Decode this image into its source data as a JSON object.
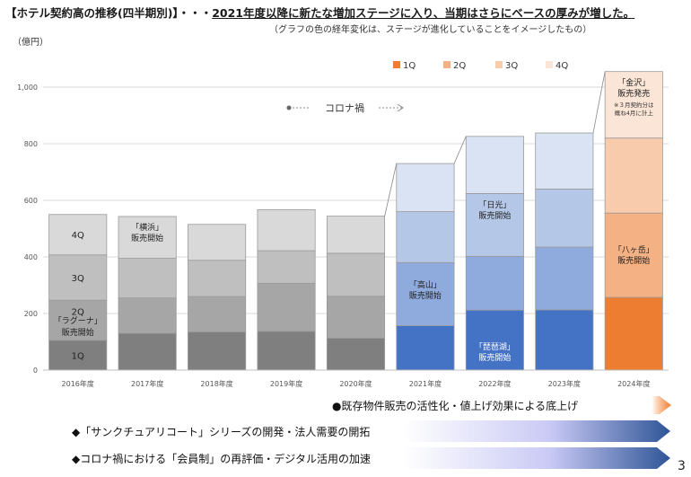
{
  "header": {
    "title_prefix": "【ホテル契約高の推移(四半期別)】・・・",
    "title_main": "2021年度以降に新たな増加ステージに入り、当期はさらにベースの厚みが増した。",
    "subtitle": "（グラフの色の経年変化は、ステージが進化していることをイメージしたもの）",
    "unit": "（億円）"
  },
  "page_number": "3",
  "chart_data": {
    "type": "bar",
    "stacked": true,
    "categories": [
      "2016年度",
      "2017年度",
      "2018年度",
      "2019年度",
      "2020年度",
      "2021年度",
      "2022年度",
      "2023年度",
      "2024年度"
    ],
    "series": [
      {
        "name": "1Q",
        "values": [
          105,
          130,
          135,
          137,
          113,
          157,
          212,
          213,
          257
        ]
      },
      {
        "name": "2Q",
        "values": [
          142,
          125,
          125,
          170,
          148,
          223,
          190,
          222,
          298
        ]
      },
      {
        "name": "3Q",
        "values": [
          160,
          140,
          128,
          115,
          152,
          180,
          222,
          205,
          265
        ]
      },
      {
        "name": "4Q",
        "values": [
          143,
          148,
          127,
          145,
          131,
          170,
          202,
          198,
          235
        ]
      }
    ],
    "ylim": [
      0,
      1000
    ],
    "yticks": [
      "0",
      "200",
      "400",
      "600",
      "800",
      "1,000"
    ],
    "legend": [
      "1Q",
      "2Q",
      "3Q",
      "4Q"
    ],
    "legend_position": "top-right",
    "grid": true,
    "colors": {
      "gray": [
        "#7f7f7f",
        "#a6a6a6",
        "#bfbfbf",
        "#d9d9d9"
      ],
      "blue": [
        "#4472c4",
        "#8faadc",
        "#b4c7e7",
        "#dae3f3"
      ],
      "orange": [
        "#ed7d31",
        "#f4b183",
        "#f8cbad",
        "#fbe5d6"
      ]
    },
    "annotations": {
      "q_labels_2016": [
        "1Q",
        "2Q",
        "3Q",
        "4Q"
      ],
      "rague": [
        "「ラグーナ」",
        "販売開始"
      ],
      "yokohama": [
        "「横浜」",
        "販売開始"
      ],
      "takayama": [
        "「高山」",
        "販売開始"
      ],
      "biwako": [
        "「琵琶湖」",
        "販売開始"
      ],
      "nikko": [
        "「日光」",
        "販売開始"
      ],
      "yatsugatake": [
        "「八ヶ岳」",
        "販売開始"
      ],
      "kanazawa": [
        "「金沢」",
        "販売発売"
      ],
      "kanazawa_note": [
        "※３月契約分は",
        "概ね4月に計上"
      ],
      "corona": "コロナ禍"
    }
  },
  "arrows": [
    "●既存物件販売の活性化・値上げ効果による底上げ",
    "◆「サンクチュアリコート」シリーズの開発・法人需要の開拓",
    "◆コロナ禍における「会員制」の再評価・デジタル活用の加速"
  ]
}
